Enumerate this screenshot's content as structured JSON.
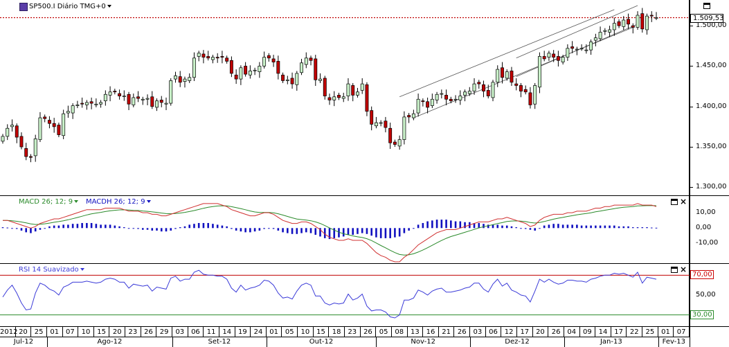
{
  "chart_header": {
    "symbol_title": "SP500.I Diário TMG+0"
  },
  "price_pane": {
    "current_price": "1.509,53",
    "y_labels": [
      "1.500,00",
      "1.450,00",
      "1.400,00",
      "1.350,00",
      "1.300,00"
    ],
    "y_values": [
      1500,
      1450,
      1400,
      1350,
      1300
    ]
  },
  "macd_pane": {
    "label_macd": "MACD 26; 12; 9",
    "label_macdh": "MACDH 26; 12; 9",
    "y_labels": [
      "10,00",
      "0,00",
      "-10,00"
    ],
    "y_values": [
      10,
      0,
      -10
    ]
  },
  "rsi_pane": {
    "label": "RSI 14 Suavizado",
    "y_labels": [
      "70,00",
      "50,00",
      "30,00"
    ],
    "y_values": [
      70,
      50,
      30
    ]
  },
  "x_axis": {
    "days": [
      "2012",
      "20",
      "25",
      "01",
      "07",
      "10",
      "15",
      "20",
      "23",
      "26",
      "29",
      "03",
      "06",
      "11",
      "14",
      "19",
      "24",
      "01",
      "05",
      "10",
      "15",
      "18",
      "23",
      "26",
      "05",
      "08",
      "13",
      "16",
      "21",
      "26",
      "03",
      "06",
      "12",
      "17",
      "20",
      "26",
      "04",
      "09",
      "14",
      "17",
      "22",
      "25",
      "01",
      "07"
    ],
    "months": [
      "Jul-12",
      "Ago-12",
      "Set-12",
      "Out-12",
      "Nov-12",
      "Dez-12",
      "Jan-13",
      "Fev-13"
    ]
  },
  "colors": {
    "up_candle": "#c8f0c8",
    "down_candle": "#c00000",
    "macd_line": "#d03030",
    "signal_line": "#2a8a2a",
    "histogram": "#1010c0",
    "rsi_line": "#3a3ad8",
    "price_line": "#c00000"
  },
  "chart_data": {
    "type": "candlestick",
    "x": [
      "2012-07-17",
      "2012-07-18",
      "2012-07-19",
      "2012-07-20",
      "2012-07-23",
      "2012-07-24",
      "2012-07-25",
      "2012-07-26",
      "2012-07-27",
      "2012-07-30",
      "2012-07-31",
      "2012-08-01",
      "2012-08-02",
      "2012-08-03",
      "2012-08-06",
      "2012-08-07",
      "2012-08-08",
      "2012-08-09",
      "2012-08-10",
      "2012-08-13",
      "2012-08-14",
      "2012-08-15",
      "2012-08-16",
      "2012-08-17",
      "2012-08-20",
      "2012-08-21",
      "2012-08-22",
      "2012-08-23",
      "2012-08-24",
      "2012-08-27",
      "2012-08-28",
      "2012-08-29",
      "2012-08-30",
      "2012-08-31",
      "2012-09-04",
      "2012-09-05",
      "2012-09-06",
      "2012-09-07",
      "2012-09-10",
      "2012-09-11",
      "2012-09-12",
      "2012-09-13",
      "2012-09-14",
      "2012-09-17",
      "2012-09-18",
      "2012-09-19",
      "2012-09-20",
      "2012-09-21",
      "2012-09-24",
      "2012-09-25",
      "2012-09-26",
      "2012-09-27",
      "2012-09-28",
      "2012-10-01",
      "2012-10-02",
      "2012-10-03",
      "2012-10-04",
      "2012-10-05",
      "2012-10-08",
      "2012-10-09",
      "2012-10-10",
      "2012-10-11",
      "2012-10-12",
      "2012-10-15",
      "2012-10-16",
      "2012-10-17",
      "2012-10-18",
      "2012-10-19",
      "2012-10-22",
      "2012-10-23",
      "2012-10-24",
      "2012-10-25",
      "2012-10-26",
      "2012-10-31",
      "2012-11-01",
      "2012-11-02",
      "2012-11-05",
      "2012-11-06",
      "2012-11-07",
      "2012-11-08",
      "2012-11-09",
      "2012-11-12",
      "2012-11-13",
      "2012-11-14",
      "2012-11-15",
      "2012-11-16",
      "2012-11-19",
      "2012-11-20",
      "2012-11-21",
      "2012-11-23",
      "2012-11-26",
      "2012-11-27",
      "2012-11-28",
      "2012-11-29",
      "2012-11-30",
      "2012-12-03",
      "2012-12-04",
      "2012-12-05",
      "2012-12-06",
      "2012-12-07",
      "2012-12-10",
      "2012-12-11",
      "2012-12-12",
      "2012-12-13",
      "2012-12-14",
      "2012-12-17",
      "2012-12-18",
      "2012-12-19",
      "2012-12-20",
      "2012-12-21",
      "2012-12-24",
      "2012-12-26",
      "2012-12-27",
      "2012-12-28",
      "2012-12-31",
      "2013-01-02",
      "2013-01-03",
      "2013-01-04",
      "2013-01-07",
      "2013-01-08",
      "2013-01-09",
      "2013-01-10",
      "2013-01-11",
      "2013-01-14",
      "2013-01-15",
      "2013-01-16",
      "2013-01-17",
      "2013-01-18",
      "2013-01-22",
      "2013-01-23",
      "2013-01-24",
      "2013-01-25",
      "2013-01-28",
      "2013-01-29",
      "2013-01-30",
      "2013-01-31",
      "2013-02-01",
      "2013-02-04",
      "2013-02-05",
      "2013-02-06",
      "2013-02-07"
    ],
    "close": [
      1363,
      1373,
      1377,
      1362,
      1350,
      1338,
      1337,
      1360,
      1386,
      1385,
      1379,
      1375,
      1365,
      1391,
      1394,
      1401,
      1402,
      1403,
      1405,
      1404,
      1403,
      1405,
      1415,
      1418,
      1418,
      1413,
      1413,
      1403,
      1411,
      1410,
      1409,
      1410,
      1400,
      1407,
      1405,
      1404,
      1432,
      1438,
      1430,
      1434,
      1436,
      1460,
      1466,
      1461,
      1460,
      1461,
      1460,
      1461,
      1456,
      1441,
      1434,
      1448,
      1440,
      1444,
      1445,
      1450,
      1461,
      1460,
      1455,
      1441,
      1432,
      1433,
      1428,
      1441,
      1454,
      1460,
      1457,
      1433,
      1434,
      1413,
      1408,
      1412,
      1411,
      1412,
      1428,
      1414,
      1418,
      1428,
      1394,
      1378,
      1380,
      1380,
      1374,
      1355,
      1353,
      1359,
      1387,
      1387,
      1391,
      1409,
      1406,
      1399,
      1409,
      1415,
      1416,
      1409,
      1407,
      1409,
      1413,
      1418,
      1419,
      1428,
      1428,
      1419,
      1413,
      1430,
      1446,
      1436,
      1443,
      1430,
      1426,
      1419,
      1418,
      1402,
      1426,
      1462,
      1459,
      1466,
      1461,
      1457,
      1461,
      1472,
      1472,
      1471,
      1472,
      1470,
      1480,
      1485,
      1492,
      1494,
      1495,
      1503,
      1500,
      1507,
      1502,
      1498,
      1513,
      1496,
      1512,
      1512,
      1510
    ],
    "series": [
      {
        "name": "MACD 26; 12; 9",
        "values": [
          5,
          5,
          4,
          3,
          2,
          1,
          0,
          1,
          3,
          4,
          5,
          6,
          6,
          7,
          8,
          9,
          10,
          11,
          12,
          12,
          12,
          12,
          13,
          13,
          13,
          13,
          12,
          11,
          11,
          11,
          10,
          10,
          9,
          9,
          8,
          8,
          9,
          10,
          11,
          12,
          13,
          14,
          15,
          16,
          16,
          16,
          16,
          15,
          14,
          12,
          11,
          10,
          9,
          8,
          8,
          9,
          10,
          10,
          9,
          7,
          5,
          4,
          3,
          3,
          4,
          4,
          3,
          1,
          -1,
          -4,
          -6,
          -7,
          -8,
          -8,
          -7,
          -8,
          -8,
          -8,
          -10,
          -13,
          -16,
          -18,
          -19,
          -21,
          -22,
          -22,
          -19,
          -17,
          -14,
          -11,
          -9,
          -7,
          -5,
          -3,
          -2,
          -1,
          -1,
          -1,
          0,
          1,
          2,
          3,
          4,
          4,
          4,
          5,
          6,
          6,
          7,
          6,
          5,
          4,
          3,
          1,
          2,
          5,
          7,
          8,
          9,
          9,
          9,
          10,
          10,
          11,
          11,
          11,
          12,
          13,
          13,
          14,
          14,
          15,
          15,
          15,
          15,
          15,
          16,
          15,
          15,
          15,
          14
        ]
      },
      {
        "name": "MACDH 26; 12; 9",
        "values": [
          0.5,
          0.3,
          0,
          -0.5,
          -1.5,
          -2.5,
          -3,
          -2,
          -1,
          0,
          1,
          1.5,
          1.5,
          2,
          2,
          2.5,
          2.5,
          3,
          3,
          3,
          2.5,
          2,
          2,
          2,
          1.5,
          1,
          0.5,
          0,
          0,
          -0.5,
          -1,
          -1,
          -1.5,
          -1.5,
          -2,
          -2,
          -1.5,
          -0.5,
          0.5,
          1,
          2,
          2.5,
          3,
          3,
          3,
          2.5,
          2,
          1.5,
          1,
          -0.5,
          -1.5,
          -2,
          -2.5,
          -2.5,
          -2,
          -1.5,
          -0.5,
          0,
          -0.5,
          -1.5,
          -2.5,
          -3,
          -3.5,
          -3.5,
          -3,
          -2.5,
          -3,
          -4,
          -5,
          -6,
          -6.5,
          -6,
          -5.5,
          -5,
          -4,
          -4,
          -3.5,
          -3,
          -3.5,
          -4.5,
          -5.5,
          -6,
          -6,
          -6,
          -5.5,
          -5,
          -3,
          -1.5,
          0,
          2,
          3,
          4,
          4.5,
          5,
          5,
          5,
          4.5,
          4,
          4,
          3.5,
          3.5,
          3,
          3,
          2.5,
          2,
          2,
          2,
          1.5,
          1.5,
          1,
          0.5,
          0,
          -0.5,
          -1,
          -1.5,
          0,
          1.5,
          2,
          2.5,
          2.5,
          2,
          2,
          2,
          2,
          1.5,
          1.5,
          1.5,
          1.5,
          1.5,
          1.5,
          1.5,
          1.5,
          1,
          1,
          1,
          0.5,
          0.5,
          0.5,
          0.5,
          0.3,
          0.2
        ]
      }
    ],
    "rsi": [
      48,
      55,
      60,
      52,
      42,
      35,
      36,
      52,
      62,
      60,
      56,
      54,
      50,
      58,
      60,
      63,
      63,
      63,
      64,
      63,
      62,
      63,
      66,
      67,
      66,
      63,
      63,
      57,
      61,
      60,
      59,
      60,
      54,
      58,
      57,
      56,
      67,
      69,
      64,
      66,
      66,
      73,
      75,
      71,
      70,
      70,
      69,
      69,
      66,
      57,
      53,
      60,
      55,
      57,
      58,
      60,
      65,
      64,
      60,
      52,
      47,
      48,
      46,
      54,
      60,
      62,
      60,
      49,
      49,
      42,
      40,
      42,
      41,
      42,
      51,
      45,
      47,
      51,
      39,
      34,
      35,
      35,
      33,
      28,
      27,
      30,
      45,
      45,
      47,
      55,
      53,
      50,
      54,
      56,
      57,
      53,
      53,
      54,
      55,
      57,
      58,
      62,
      62,
      56,
      53,
      61,
      66,
      59,
      62,
      55,
      53,
      50,
      49,
      43,
      54,
      66,
      63,
      66,
      63,
      61,
      62,
      65,
      65,
      64,
      64,
      63,
      66,
      67,
      69,
      70,
      70,
      72,
      71,
      72,
      70,
      68,
      73,
      62,
      68,
      67,
      66
    ],
    "ylim": [
      1290,
      1525
    ],
    "macd_ylim": [
      -22,
      20
    ],
    "rsi_ylim": [
      20,
      80
    ]
  }
}
